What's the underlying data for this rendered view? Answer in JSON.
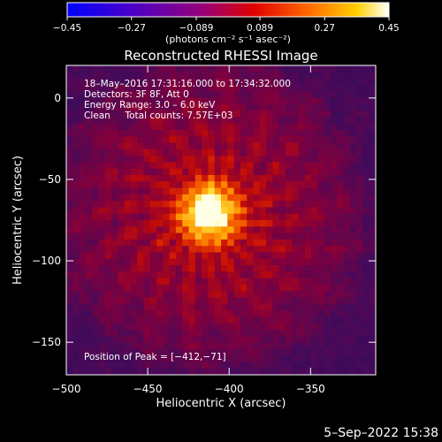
{
  "chart_data": {
    "type": "heatmap",
    "title": "Reconstructed RHESSI Image",
    "xlabel": "Heliocentric X (arcsec)",
    "ylabel": "Heliocentric Y (arcsec)",
    "xlim": [
      -500,
      -310
    ],
    "ylim": [
      -170,
      20
    ],
    "x_ticks": [
      -500,
      -450,
      -400,
      -350
    ],
    "x_tick_labels": [
      "−500",
      "−450",
      "−400",
      "−350"
    ],
    "y_ticks": [
      0,
      -50,
      -100,
      -150
    ],
    "y_tick_labels": [
      "0",
      "−50",
      "−100",
      "−150"
    ],
    "colorbar": {
      "range": [
        -0.45,
        0.45
      ],
      "ticks": [
        -0.45,
        -0.27,
        -0.089,
        0.089,
        0.27,
        0.45
      ],
      "tick_labels": [
        "−0.45",
        "−0.27",
        "−0.089",
        "0.089",
        "0.27",
        "0.45"
      ],
      "units_label": "(photons cm⁻² s⁻¹ asec⁻²)"
    },
    "peak_position": [
      -412,
      -71
    ],
    "annotations": [
      "18–May–2016 17:31:16.000 to 17:34:32.000",
      "Detectors: 3F 8F, Att 0",
      "Energy Range: 3.0 – 6.0 keV",
      "Clean     Total counts: 7.57E+03",
      "Position of Peak = [−412,−71]"
    ]
  },
  "footer_date": "5–Sep–2022 15:38"
}
